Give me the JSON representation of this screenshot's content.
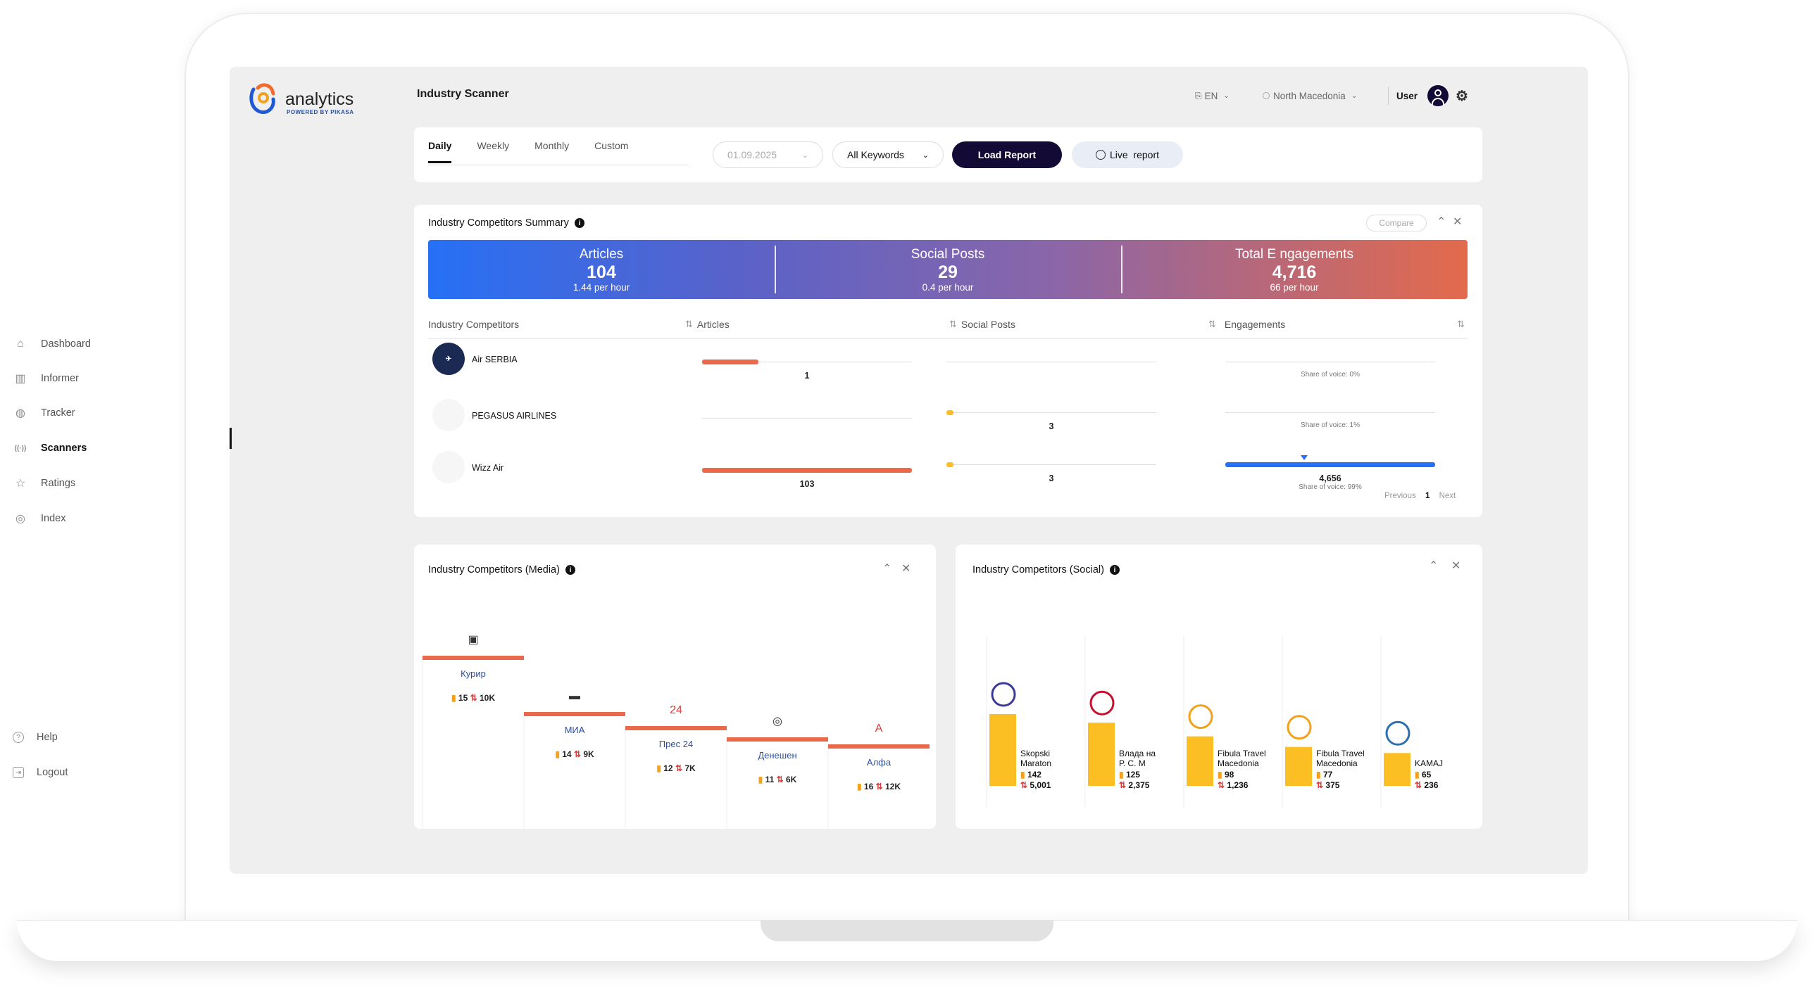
{
  "app": {
    "name": "analytics",
    "powered_by": "POWERED BY PIKASA"
  },
  "header": {
    "title": "Industry Scanner",
    "language": "EN",
    "country": "North Macedonia",
    "user": "User"
  },
  "nav": {
    "items": [
      {
        "label": "Dashboard",
        "icon": "home-icon"
      },
      {
        "label": "Informer",
        "icon": "bar-chart-icon"
      },
      {
        "label": "Tracker",
        "icon": "tracker-icon"
      },
      {
        "label": "Scanners",
        "icon": "scanner-icon",
        "active": true
      },
      {
        "label": "Ratings",
        "icon": "star-icon"
      },
      {
        "label": "Index",
        "icon": "globe-icon"
      }
    ],
    "bottom": [
      {
        "label": "Help",
        "icon": "help-icon"
      },
      {
        "label": "Logout",
        "icon": "logout-icon"
      }
    ]
  },
  "filters": {
    "tabs": [
      "Daily",
      "Weekly",
      "Monthly",
      "Custom"
    ],
    "active_tab": "Daily",
    "date": "01.09.2025",
    "keywords": "All Keywords",
    "load_report": "Load Report",
    "live_report": "Live  report"
  },
  "summary": {
    "title": "Industry Competitors Summary",
    "compare": "Compare",
    "metrics": [
      {
        "label": "Articles",
        "value": "104",
        "sub": "1.44 per hour"
      },
      {
        "label": "Social Posts",
        "value": "29",
        "sub": "0.4 per hour"
      },
      {
        "label": "Total E ngagements",
        "value": "4,716",
        "sub": "66 per hour"
      }
    ],
    "columns": [
      "Industry Competitors",
      "Articles",
      "Social Posts",
      "Engagements"
    ],
    "rows": [
      {
        "name": "Air SERBIA",
        "articles": 1,
        "articles_label": "1",
        "social": 0,
        "social_label": "",
        "engagements": 0,
        "engagements_label": "",
        "sov": "Share of voice: 0%",
        "logo_color": "#1b2a52"
      },
      {
        "name": "PEGASUS AIRLINES",
        "articles": 0,
        "articles_label": "",
        "social": 3,
        "social_label": "3",
        "engagements": 0,
        "engagements_label": "",
        "sov": "Share of voice: 1%",
        "logo_color": "#c8102e"
      },
      {
        "name": "Wizz Air",
        "articles": 103,
        "articles_label": "103",
        "social": 3,
        "social_label": "3",
        "engagements": 4656,
        "engagements_label": "4,656",
        "sov": "Share of voice: 99%",
        "logo_color": "#c6007e"
      }
    ],
    "pager": {
      "previous": "Previous",
      "page": "1",
      "next": "Next"
    }
  },
  "media": {
    "title": "Industry Competitors (Media)",
    "chart_data": {
      "type": "bar",
      "title": "Industry Competitors (Media)",
      "categories": [
        "Курир",
        "МИА",
        "Прес 24",
        "Денешен",
        "Алфа"
      ],
      "series": [
        {
          "name": "articles",
          "values": [
            15,
            14,
            12,
            11,
            16
          ]
        },
        {
          "name": "engagements",
          "values": [
            "10K",
            "9K",
            "7K",
            "6K",
            "12K"
          ]
        }
      ]
    }
  },
  "social": {
    "title": "Industry Competitors (Social)",
    "chart_data": {
      "type": "bar",
      "title": "Industry Competitors (Social)",
      "categories": [
        "Skopski Maraton",
        "Влада на Р. С. М",
        "Fibula Travel Macedonia",
        "Fibula Travel Macedonia",
        "KAMAJ"
      ],
      "series": [
        {
          "name": "posts",
          "values": [
            142,
            125,
            98,
            77,
            65
          ]
        },
        {
          "name": "engagements",
          "values": [
            5001,
            2375,
            1236,
            375,
            236
          ],
          "labels": [
            "5,001",
            "2,375",
            "1,236",
            "375",
            "236"
          ]
        }
      ]
    }
  },
  "colors": {
    "accent": "#e96a4a",
    "primary": "#140a36",
    "blue": "#2670f6",
    "yellow": "#fbbf24"
  }
}
